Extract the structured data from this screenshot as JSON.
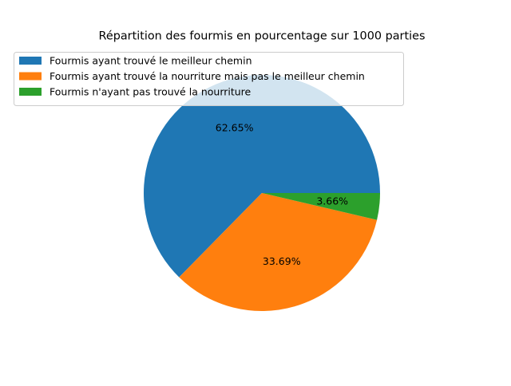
{
  "chart_data": {
    "type": "pie",
    "title": "Répartition des fourmis en pourcentage sur 1000 parties",
    "labels": [
      "Fourmis ayant trouvé le meilleur chemin",
      "Fourmis ayant trouvé la nourriture mais pas le meilleur chemin",
      "Fourmis n'ayant pas trouvé la nourriture"
    ],
    "values": [
      62.65,
      33.69,
      3.66
    ],
    "value_labels": [
      "62.65%",
      "33.69%",
      "3.66%"
    ],
    "colors": [
      "#1f77b4",
      "#ff7f0e",
      "#2ca02c"
    ],
    "legend_position": "upper-left"
  }
}
